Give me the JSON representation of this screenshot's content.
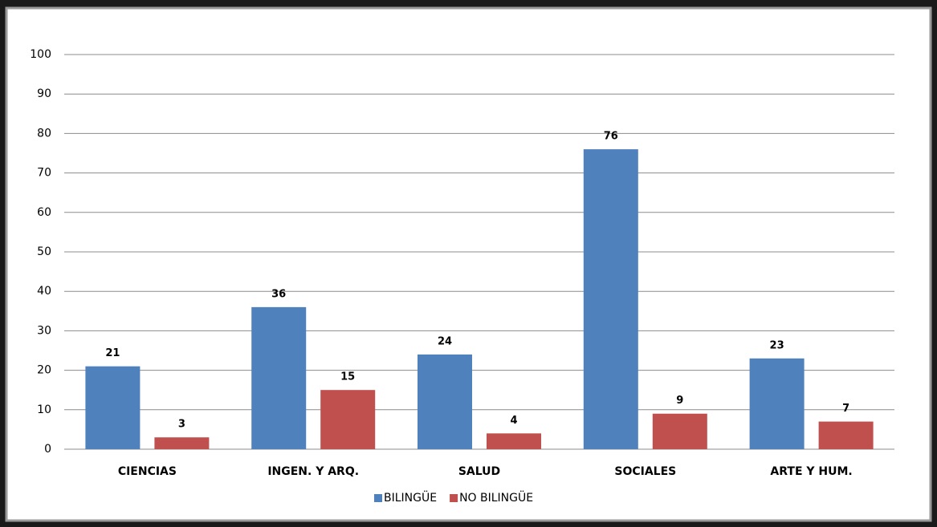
{
  "chart_data": {
    "type": "bar",
    "categories": [
      "CIENCIAS",
      "INGEN. Y ARQ.",
      "SALUD",
      "SOCIALES",
      "ARTE Y HUM."
    ],
    "series": [
      {
        "name": "BILINGÜE",
        "color": "#4f81bd",
        "values": [
          21,
          36,
          24,
          76,
          23
        ]
      },
      {
        "name": "NO BILINGÜE",
        "color": "#c0504d",
        "values": [
          3,
          15,
          4,
          9,
          7
        ]
      }
    ],
    "ylim": [
      0,
      100
    ],
    "yticks": [
      0,
      10,
      20,
      30,
      40,
      50,
      60,
      70,
      80,
      90,
      100
    ],
    "grid": true,
    "legend": "bottom"
  }
}
